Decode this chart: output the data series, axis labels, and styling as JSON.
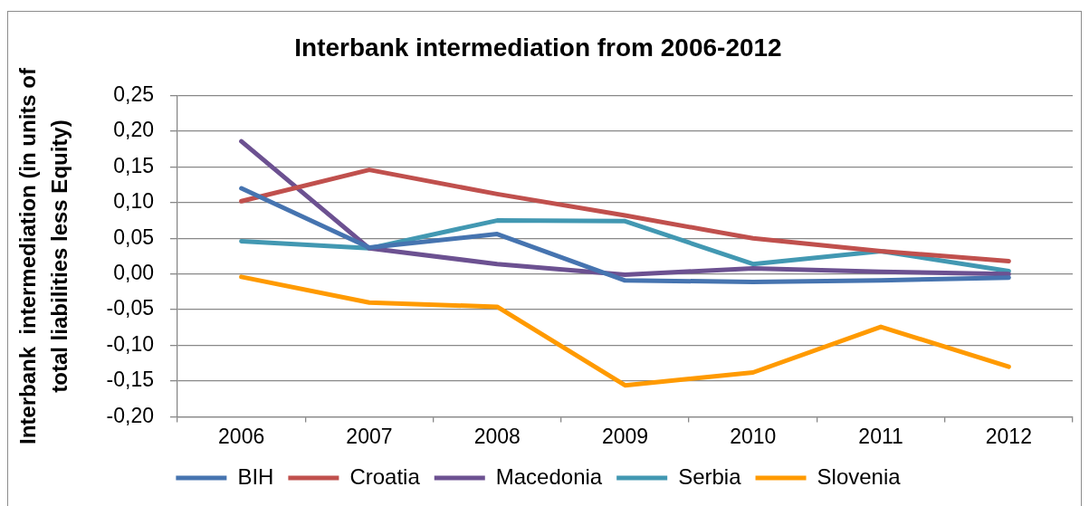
{
  "chart_data": {
    "type": "line",
    "title": "Interbank intermediation from 2006-2012",
    "ylabel": "Interbank  intermediation (in units of total liabilities less Equity)",
    "categories": [
      "2006",
      "2007",
      "2008",
      "2009",
      "2010",
      "2011",
      "2012"
    ],
    "series": [
      {
        "name": "BIH",
        "color": "#4674b0",
        "values": [
          0.12,
          0.037,
          0.056,
          -0.009,
          -0.011,
          -0.009,
          -0.005
        ]
      },
      {
        "name": "Croatia",
        "color": "#c0504d",
        "values": [
          0.102,
          0.146,
          0.112,
          0.082,
          0.05,
          0.032,
          0.018
        ]
      },
      {
        "name": "Macedonia",
        "color": "#6c5191",
        "values": [
          0.186,
          0.036,
          0.014,
          -0.001,
          0.008,
          0.003,
          0.0
        ]
      },
      {
        "name": "Serbia",
        "color": "#4298b2",
        "values": [
          0.046,
          0.036,
          0.075,
          0.074,
          0.014,
          0.032,
          0.004
        ]
      },
      {
        "name": "Slovenia",
        "color": "#ff9a00",
        "values": [
          -0.004,
          -0.04,
          -0.046,
          -0.156,
          -0.138,
          -0.074,
          -0.13
        ]
      }
    ],
    "ylim": [
      -0.2,
      0.25
    ],
    "yticks": [
      {
        "value": 0.25,
        "label": "0,25"
      },
      {
        "value": 0.2,
        "label": "0,20"
      },
      {
        "value": 0.15,
        "label": "0,15"
      },
      {
        "value": 0.1,
        "label": "0,10"
      },
      {
        "value": 0.05,
        "label": "0,05"
      },
      {
        "value": 0,
        "label": "0,00"
      },
      {
        "value": -0.05,
        "label": "-0,05"
      },
      {
        "value": -0.1,
        "label": "-0,10"
      },
      {
        "value": -0.15,
        "label": "-0,15"
      },
      {
        "value": -0.2,
        "label": "-0,20"
      }
    ],
    "grid": "y",
    "legend": "bottom",
    "marker": "none",
    "line_style": "solid"
  }
}
